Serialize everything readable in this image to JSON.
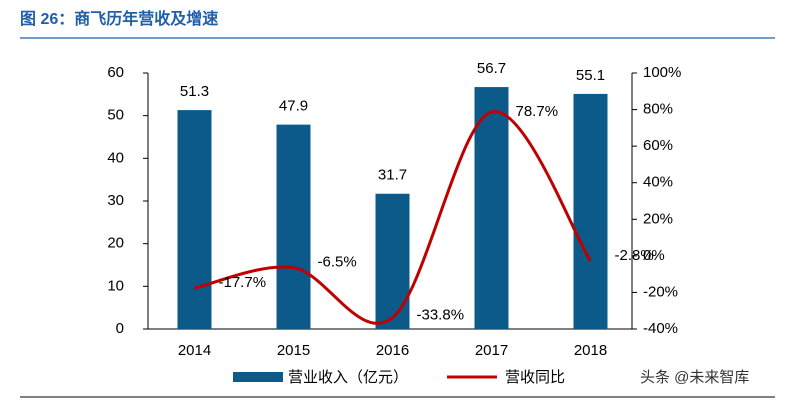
{
  "chart_data": {
    "type": "bar_line",
    "title": "图 26：商飞历年营收及增速",
    "categories": [
      "2014",
      "2015",
      "2016",
      "2017",
      "2018"
    ],
    "series": [
      {
        "name": "营业收入（亿元）",
        "type": "bar",
        "color": "#0b5a8a",
        "values": [
          51.3,
          47.9,
          31.7,
          56.7,
          55.1
        ]
      },
      {
        "name": "营收同比",
        "type": "line",
        "axis": "y2",
        "color": "#c00000",
        "values": [
          -17.7,
          -6.5,
          -33.8,
          78.7,
          -2.8
        ],
        "value_labels": [
          "-17.7%",
          "-6.5%",
          "-33.8%",
          "78.7%",
          "-2.8%"
        ]
      }
    ],
    "ylim": [
      0,
      60
    ],
    "yticks": [
      0,
      10,
      20,
      30,
      40,
      50,
      60
    ],
    "y2lim": [
      -40,
      100
    ],
    "y2ticks": [
      {
        "value": -40,
        "label": "-40%"
      },
      {
        "value": -20,
        "label": "-20%"
      },
      {
        "value": 0,
        "label": "0%"
      },
      {
        "value": 20,
        "label": "20%"
      },
      {
        "value": 40,
        "label": "40%"
      },
      {
        "value": 60,
        "label": "60%"
      },
      {
        "value": 80,
        "label": "80%"
      },
      {
        "value": 100,
        "label": "100%"
      }
    ],
    "source": "头条 @未来智库"
  }
}
